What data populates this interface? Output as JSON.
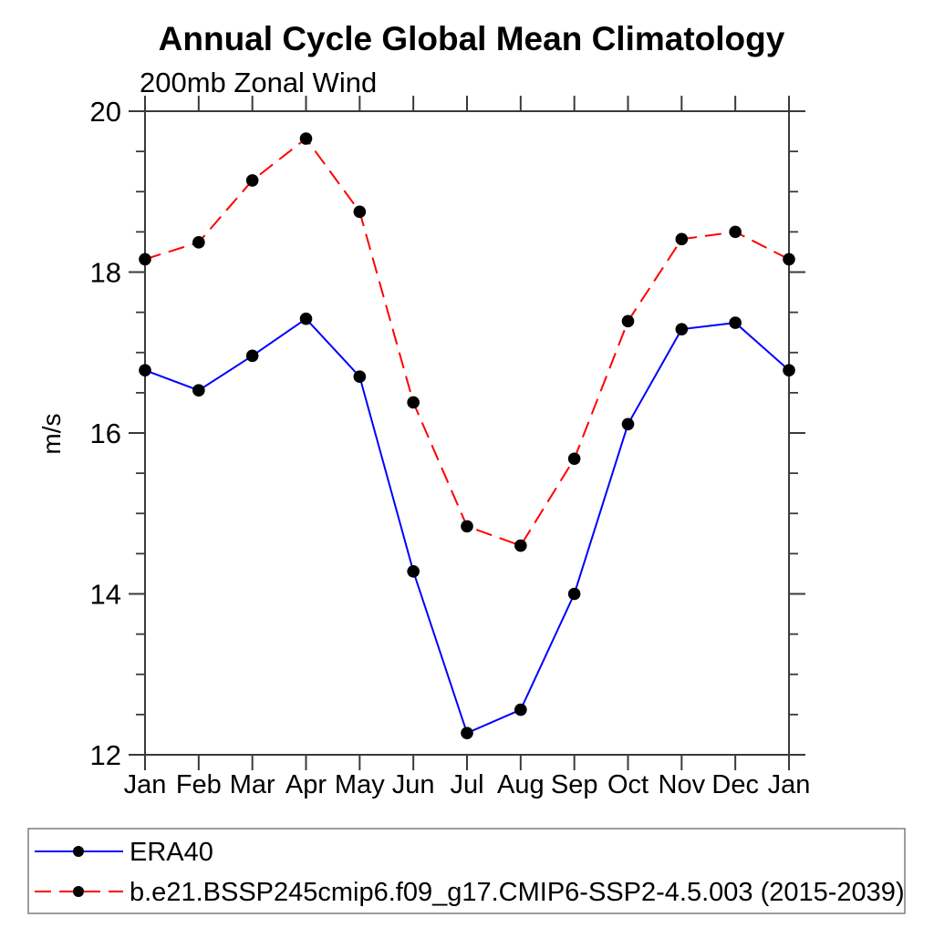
{
  "title": "Annual Cycle Global Mean Climatology",
  "subtitle": "200mb Zonal Wind",
  "ylabel": "m/s",
  "colors": {
    "era40_line": "#0000ff",
    "model_line": "#ff0000",
    "marker": "#000000",
    "axis": "#3a3a3a",
    "legend_border": "#7d7d7d",
    "text": "#000000",
    "background": "#ffffff"
  },
  "chart_data": {
    "type": "line",
    "title": "Annual Cycle Global Mean Climatology",
    "subtitle": "200mb Zonal Wind",
    "xlabel": "",
    "ylabel": "m/s",
    "categories": [
      "Jan",
      "Feb",
      "Mar",
      "Apr",
      "May",
      "Jun",
      "Jul",
      "Aug",
      "Sep",
      "Oct",
      "Nov",
      "Dec",
      "Jan"
    ],
    "ylim": [
      12,
      20
    ],
    "yticks_major": [
      12,
      14,
      16,
      18,
      20
    ],
    "ytick_minor_step": 0.5,
    "grid": false,
    "legend_position": "bottom-box",
    "series": [
      {
        "name": "ERA40",
        "color": "#0000ff",
        "line_style": "solid",
        "marker": "filled-circle",
        "marker_color": "#000000",
        "values": [
          16.78,
          16.53,
          16.96,
          17.42,
          16.7,
          14.28,
          12.27,
          12.56,
          14.0,
          16.11,
          17.29,
          17.37,
          16.78
        ]
      },
      {
        "name": "b.e21.BSSP245cmip6.f09_g17.CMIP6-SSP2-4.5.003 (2015-2039)",
        "color": "#ff0000",
        "line_style": "dashed",
        "marker": "filled-circle",
        "marker_color": "#000000",
        "values": [
          18.16,
          18.37,
          19.14,
          19.66,
          18.75,
          16.38,
          14.84,
          14.6,
          15.68,
          17.39,
          18.41,
          18.5,
          18.16
        ]
      }
    ]
  }
}
